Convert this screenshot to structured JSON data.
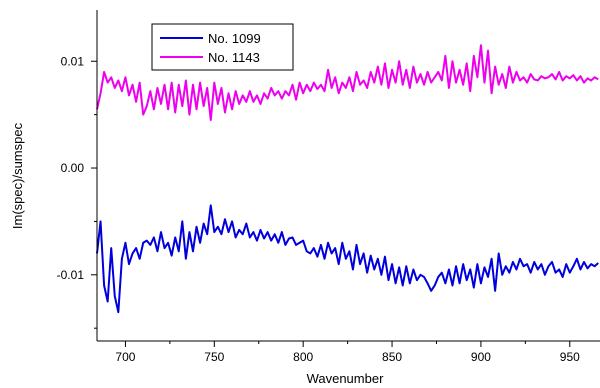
{
  "chart_data": {
    "type": "line",
    "xlabel": "Wavenumber",
    "ylabel": "Im(spec)/sumspec",
    "xlim": [
      684,
      967
    ],
    "ylim": [
      -0.0162,
      0.0148
    ],
    "x_ticks": [
      700,
      750,
      800,
      850,
      900,
      950
    ],
    "x_tick_labels": [
      "700",
      "750",
      "800",
      "850",
      "900",
      "950"
    ],
    "y_ticks": [
      -0.01,
      0.0,
      0.01
    ],
    "y_tick_labels": [
      "-0.01",
      "0.00",
      "0.01"
    ],
    "grid": false,
    "legend_position": "top-left",
    "series": [
      {
        "name": "No. 1099",
        "color": "#0000dd",
        "x": [
          684,
          686,
          688,
          690,
          692,
          694,
          696,
          698,
          700,
          702,
          704,
          706,
          708,
          710,
          712,
          714,
          716,
          718,
          720,
          722,
          724,
          726,
          728,
          730,
          732,
          734,
          736,
          738,
          740,
          742,
          744,
          746,
          748,
          750,
          752,
          754,
          756,
          758,
          760,
          762,
          764,
          766,
          768,
          770,
          772,
          774,
          776,
          778,
          780,
          782,
          784,
          786,
          788,
          790,
          792,
          794,
          796,
          798,
          800,
          802,
          804,
          806,
          808,
          810,
          812,
          814,
          816,
          818,
          820,
          822,
          824,
          826,
          828,
          830,
          832,
          834,
          836,
          838,
          840,
          842,
          844,
          846,
          848,
          850,
          852,
          854,
          856,
          858,
          860,
          862,
          864,
          866,
          868,
          870,
          872,
          874,
          876,
          878,
          880,
          882,
          884,
          886,
          888,
          890,
          892,
          894,
          896,
          898,
          900,
          902,
          904,
          906,
          908,
          910,
          912,
          914,
          916,
          918,
          920,
          922,
          924,
          926,
          928,
          930,
          932,
          934,
          936,
          938,
          940,
          942,
          944,
          946,
          948,
          950,
          952,
          954,
          956,
          958,
          960,
          962,
          964,
          966
        ],
        "y": [
          -0.008,
          -0.005,
          -0.011,
          -0.0125,
          -0.0075,
          -0.012,
          -0.0135,
          -0.0085,
          -0.007,
          -0.009,
          -0.008,
          -0.0075,
          -0.0085,
          -0.007,
          -0.0068,
          -0.0072,
          -0.0065,
          -0.0078,
          -0.006,
          -0.0075,
          -0.007,
          -0.0082,
          -0.0065,
          -0.0078,
          -0.005,
          -0.0085,
          -0.006,
          -0.0078,
          -0.0055,
          -0.007,
          -0.0052,
          -0.0062,
          -0.0035,
          -0.006,
          -0.0055,
          -0.0062,
          -0.0048,
          -0.006,
          -0.005,
          -0.0065,
          -0.0058,
          -0.0062,
          -0.0052,
          -0.0065,
          -0.006,
          -0.0068,
          -0.0058,
          -0.0066,
          -0.006,
          -0.0068,
          -0.0062,
          -0.007,
          -0.006,
          -0.0072,
          -0.0066,
          -0.0065,
          -0.0072,
          -0.007,
          -0.0068,
          -0.0078,
          -0.008,
          -0.0075,
          -0.0083,
          -0.0072,
          -0.0085,
          -0.007,
          -0.008,
          -0.0075,
          -0.009,
          -0.007,
          -0.0085,
          -0.0078,
          -0.0095,
          -0.0072,
          -0.009,
          -0.008,
          -0.0098,
          -0.0082,
          -0.0095,
          -0.0085,
          -0.01,
          -0.0083,
          -0.0105,
          -0.009,
          -0.0108,
          -0.0093,
          -0.011,
          -0.0092,
          -0.0108,
          -0.0095,
          -0.0105,
          -0.01,
          -0.0102,
          -0.0108,
          -0.0115,
          -0.011,
          -0.0102,
          -0.0098,
          -0.0108,
          -0.0095,
          -0.011,
          -0.0092,
          -0.0108,
          -0.009,
          -0.0105,
          -0.0095,
          -0.0112,
          -0.009,
          -0.0108,
          -0.0093,
          -0.0102,
          -0.0085,
          -0.0115,
          -0.008,
          -0.01,
          -0.0092,
          -0.0098,
          -0.0088,
          -0.0095,
          -0.0085,
          -0.0092,
          -0.009,
          -0.0098,
          -0.0088,
          -0.0095,
          -0.009,
          -0.01,
          -0.0092,
          -0.0088,
          -0.0098,
          -0.0095,
          -0.0102,
          -0.009,
          -0.0098,
          -0.0092,
          -0.0085,
          -0.0095,
          -0.0088,
          -0.0094,
          -0.009,
          -0.0092,
          -0.0089
        ],
        "stroke_width": 2
      },
      {
        "name": "No. 1143",
        "color": "#ee00ee",
        "x": [
          684,
          686,
          688,
          690,
          692,
          694,
          696,
          698,
          700,
          702,
          704,
          706,
          708,
          710,
          712,
          714,
          716,
          718,
          720,
          722,
          724,
          726,
          728,
          730,
          732,
          734,
          736,
          738,
          740,
          742,
          744,
          746,
          748,
          750,
          752,
          754,
          756,
          758,
          760,
          762,
          764,
          766,
          768,
          770,
          772,
          774,
          776,
          778,
          780,
          782,
          784,
          786,
          788,
          790,
          792,
          794,
          796,
          798,
          800,
          802,
          804,
          806,
          808,
          810,
          812,
          814,
          816,
          818,
          820,
          822,
          824,
          826,
          828,
          830,
          832,
          834,
          836,
          838,
          840,
          842,
          844,
          846,
          848,
          850,
          852,
          854,
          856,
          858,
          860,
          862,
          864,
          866,
          868,
          870,
          872,
          874,
          876,
          878,
          880,
          882,
          884,
          886,
          888,
          890,
          892,
          894,
          896,
          898,
          900,
          902,
          904,
          906,
          908,
          910,
          912,
          914,
          916,
          918,
          920,
          922,
          924,
          926,
          928,
          930,
          932,
          934,
          936,
          938,
          940,
          942,
          944,
          946,
          948,
          950,
          952,
          954,
          956,
          958,
          960,
          962,
          964,
          966
        ],
        "y": [
          0.0055,
          0.007,
          0.009,
          0.008,
          0.0085,
          0.0075,
          0.0082,
          0.0072,
          0.0085,
          0.0068,
          0.0078,
          0.0062,
          0.008,
          0.005,
          0.0058,
          0.0072,
          0.0055,
          0.0075,
          0.006,
          0.0078,
          0.0055,
          0.008,
          0.0052,
          0.0078,
          0.0058,
          0.0082,
          0.005,
          0.0078,
          0.0055,
          0.008,
          0.0058,
          0.0075,
          0.0045,
          0.008,
          0.006,
          0.0075,
          0.0052,
          0.007,
          0.0055,
          0.0072,
          0.006,
          0.0068,
          0.0062,
          0.0072,
          0.0062,
          0.0068,
          0.006,
          0.007,
          0.0065,
          0.0075,
          0.0068,
          0.0072,
          0.0065,
          0.0072,
          0.0068,
          0.0078,
          0.0064,
          0.008,
          0.007,
          0.0078,
          0.0072,
          0.008,
          0.0074,
          0.0078,
          0.0072,
          0.0092,
          0.0075,
          0.0085,
          0.007,
          0.008,
          0.0075,
          0.0085,
          0.0072,
          0.009,
          0.0078,
          0.0082,
          0.0075,
          0.009,
          0.008,
          0.0095,
          0.0078,
          0.0098,
          0.0075,
          0.0092,
          0.008,
          0.01,
          0.0078,
          0.0092,
          0.0075,
          0.0095,
          0.008,
          0.0088,
          0.0078,
          0.009,
          0.008,
          0.0085,
          0.009,
          0.0082,
          0.0105,
          0.0075,
          0.01,
          0.008,
          0.0092,
          0.0078,
          0.0098,
          0.0072,
          0.0105,
          0.0085,
          0.0115,
          0.008,
          0.011,
          0.007,
          0.0095,
          0.0078,
          0.0088,
          0.0075,
          0.0095,
          0.008,
          0.009,
          0.0082,
          0.0085,
          0.008,
          0.0088,
          0.0083,
          0.0082,
          0.0086,
          0.0084,
          0.0085,
          0.0088,
          0.0083,
          0.009,
          0.0082,
          0.0086,
          0.0084,
          0.0087,
          0.0082,
          0.0086,
          0.008,
          0.0084,
          0.0082,
          0.0085,
          0.0083
        ],
        "stroke_width": 2
      }
    ]
  }
}
